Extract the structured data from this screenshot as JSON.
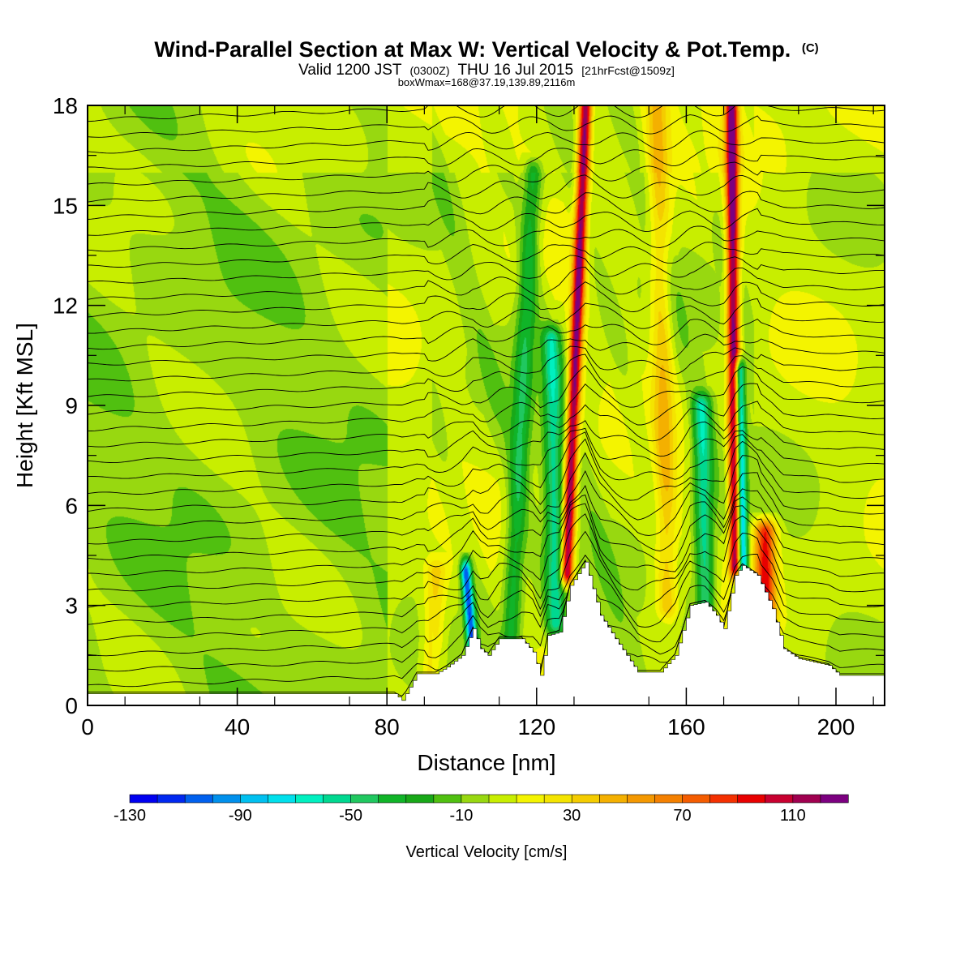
{
  "header": {
    "title": "Wind-Parallel Section at Max W: Vertical Velocity & Pot.Temp.",
    "title_mark": "(C)",
    "subtitle_a": "Valid 1200 JST",
    "subtitle_b": "(0300Z)",
    "subtitle_c": "THU 16 Jul 2015",
    "subtitle_d": "[21hrFcst@1509z]",
    "subtitle_2": "boxWmax=168@37.19,139.89,2116m"
  },
  "chart_data": {
    "type": "heatmap",
    "xlabel": "Distance [nm]",
    "ylabel": "Height [Kft MSL]",
    "xlim": [
      0,
      213
    ],
    "ylim": [
      0,
      18
    ],
    "x_ticks": [
      "0",
      "40",
      "80",
      "120",
      "160",
      "200"
    ],
    "y_ticks": [
      "0",
      "3",
      "6",
      "9",
      "12",
      "15",
      "18"
    ],
    "x_tick_values": [
      0,
      40,
      80,
      120,
      160,
      200
    ],
    "y_tick_values": [
      0,
      3,
      6,
      9,
      12,
      15,
      18
    ],
    "terrain_kft": [
      [
        0,
        0.35
      ],
      [
        82,
        0.35
      ],
      [
        84,
        0.15
      ],
      [
        88,
        0.95
      ],
      [
        93,
        0.95
      ],
      [
        96,
        1.15
      ],
      [
        100,
        1.5
      ],
      [
        103,
        2.3
      ],
      [
        105,
        1.7
      ],
      [
        107,
        1.5
      ],
      [
        110,
        2.0
      ],
      [
        116,
        2.0
      ],
      [
        119,
        1.6
      ],
      [
        121,
        0.9
      ],
      [
        123,
        2.1
      ],
      [
        126,
        2.2
      ],
      [
        129,
        3.6
      ],
      [
        133,
        4.3
      ],
      [
        137,
        2.7
      ],
      [
        141,
        2.0
      ],
      [
        144,
        1.5
      ],
      [
        147,
        1.0
      ],
      [
        153,
        1.0
      ],
      [
        157,
        1.5
      ],
      [
        161,
        3.0
      ],
      [
        165,
        3.1
      ],
      [
        168,
        2.7
      ],
      [
        170,
        2.3
      ],
      [
        173,
        3.9
      ],
      [
        175,
        4.2
      ],
      [
        179,
        3.9
      ],
      [
        183,
        2.9
      ],
      [
        186,
        1.7
      ],
      [
        190,
        1.4
      ],
      [
        198,
        1.2
      ],
      [
        201,
        0.9
      ],
      [
        213,
        0.9
      ]
    ],
    "plumes": [
      {
        "x_base": 128,
        "x_top": 133,
        "y_bottom": 4.0,
        "y_top": 18,
        "peak_cms": 120
      },
      {
        "x_base": 173,
        "x_top": 172,
        "y_bottom": 4.2,
        "y_top": 18,
        "peak_cms": 125
      },
      {
        "x_base": 181,
        "x_top": 181,
        "y_bottom": 2.8,
        "y_top": 5.2,
        "peak_cms": 90
      },
      {
        "x_base": 155,
        "x_top": 152,
        "y_bottom": 3.0,
        "y_top": 18,
        "peak_cms": 35
      },
      {
        "x_base": 92,
        "x_top": 93,
        "y_bottom": 1.0,
        "y_top": 4.0,
        "peak_cms": 30
      }
    ],
    "downdrafts": [
      {
        "x_base": 103,
        "x_top": 101,
        "y_bottom": 1.5,
        "y_top": 4.0,
        "peak_cms": -110
      },
      {
        "x_base": 175,
        "x_top": 174,
        "y_bottom": 4.0,
        "y_top": 10.0,
        "peak_cms": -100
      },
      {
        "x_base": 113,
        "x_top": 119,
        "y_bottom": 2.0,
        "y_top": 16.0,
        "peak_cms": -40
      },
      {
        "x_base": 125,
        "x_top": 124,
        "y_bottom": 2.5,
        "y_top": 11.0,
        "peak_cms": -55
      },
      {
        "x_base": 165,
        "x_top": 164,
        "y_bottom": 3.0,
        "y_top": 9.0,
        "peak_cms": -60
      }
    ],
    "theta_contour_levels": 38,
    "colorbar": {
      "title": "Vertical Velocity [cm/s]",
      "min": -130,
      "max": 130,
      "step": 10,
      "labels": [
        "-130",
        "-90",
        "-50",
        "-10",
        "30",
        "70",
        "110"
      ],
      "colors": [
        "#0000f0",
        "#0028f0",
        "#0060ee",
        "#0090ec",
        "#00c0f0",
        "#00e0ec",
        "#00f0c0",
        "#00d890",
        "#20c860",
        "#10b428",
        "#18a818",
        "#50c010",
        "#98d810",
        "#c8ee00",
        "#f4f400",
        "#f4e400",
        "#f4cc00",
        "#f4b000",
        "#f49800",
        "#f48000",
        "#f45c00",
        "#f43000",
        "#e80000",
        "#c80030",
        "#a00050",
        "#7c0080"
      ]
    }
  }
}
